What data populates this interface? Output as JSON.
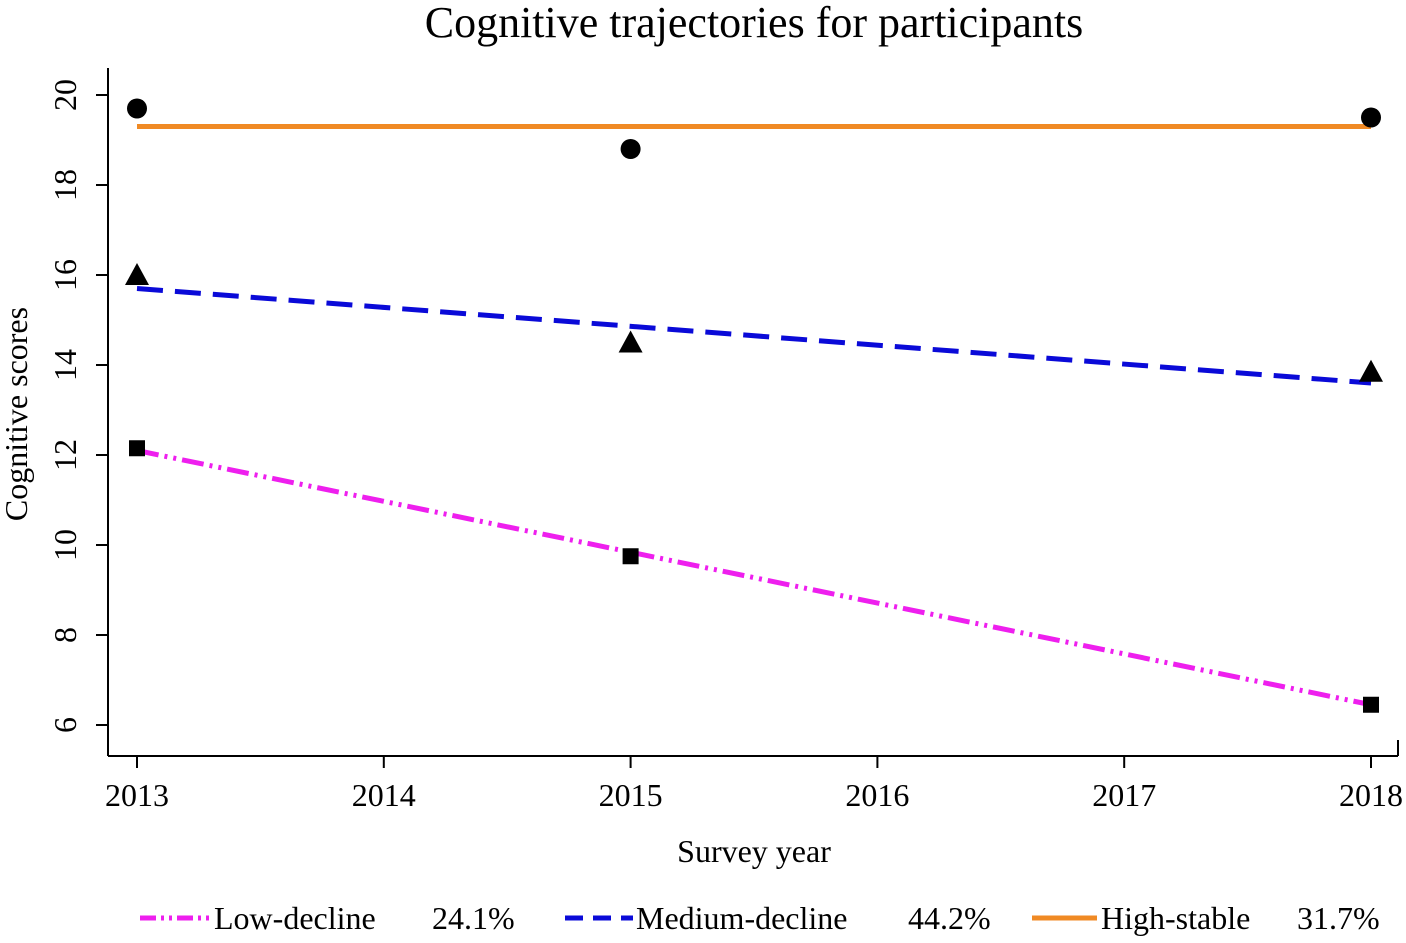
{
  "chart_data": {
    "type": "line",
    "title": "Cognitive trajectories for participants",
    "xlabel": "Survey year",
    "ylabel": "Cognitive scores",
    "xlim": [
      2012.9,
      2018.1
    ],
    "ylim": [
      5.4,
      20.6
    ],
    "x_ticks": [
      2013,
      2014,
      2015,
      2016,
      2017,
      2018
    ],
    "y_ticks": [
      6,
      8,
      10,
      12,
      14,
      16,
      18,
      20
    ],
    "series": [
      {
        "name": "Low-decline",
        "pct": "24.1%",
        "color": "#ee1fee",
        "line_style": "dash-dot-dot",
        "marker": "square",
        "fit": [
          [
            2013,
            12.1
          ],
          [
            2018,
            6.45
          ]
        ],
        "points": [
          [
            2013,
            12.15
          ],
          [
            2015,
            9.75
          ],
          [
            2018,
            6.45
          ]
        ]
      },
      {
        "name": "Medium-decline",
        "pct": "44.2%",
        "color": "#0a0ad8",
        "line_style": "dashed",
        "marker": "triangle",
        "fit": [
          [
            2013,
            15.7
          ],
          [
            2018,
            13.6
          ]
        ],
        "points": [
          [
            2013,
            16.0
          ],
          [
            2015,
            14.5
          ],
          [
            2018,
            13.85
          ]
        ]
      },
      {
        "name": "High-stable",
        "pct": "31.7%",
        "color": "#f08a24",
        "line_style": "solid",
        "marker": "circle",
        "fit": [
          [
            2013,
            19.3
          ],
          [
            2018,
            19.3
          ]
        ],
        "points": [
          [
            2013,
            19.7
          ],
          [
            2015,
            18.8
          ],
          [
            2018,
            19.5
          ]
        ]
      }
    ],
    "legend_position": "bottom"
  }
}
